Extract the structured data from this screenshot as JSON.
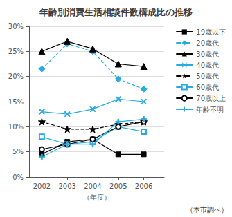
{
  "chart_data": {
    "type": "line",
    "title": "年齢別消費生活相談件数構成比の推移",
    "xlabel": "（年度）",
    "annotations": [
      "（本市調べ）"
    ],
    "x": [
      2002,
      2003,
      2004,
      2005,
      2006
    ],
    "xlim": [
      2001.5,
      2006.8
    ],
    "xticks": [
      2002,
      2003,
      2004,
      2005,
      2006
    ],
    "ylim": [
      0,
      30
    ],
    "yticks": [
      {
        "value": 0,
        "label": "0%"
      },
      {
        "value": 5,
        "label": "5%"
      },
      {
        "value": 10,
        "label": "10%"
      },
      {
        "value": 15,
        "label": "15%"
      },
      {
        "value": 20,
        "label": "20%"
      },
      {
        "value": 25,
        "label": "25%"
      },
      {
        "value": 30,
        "label": "30%"
      }
    ],
    "grid": true,
    "legend": "upper right",
    "series": [
      {
        "name": "19歳以下",
        "values": [
          4.5,
          7.0,
          7.5,
          4.5,
          4.5
        ],
        "color": "#000000",
        "line_style": "solid",
        "marker": "square"
      },
      {
        "name": "20歳代",
        "values": [
          21.5,
          26.5,
          25.0,
          19.5,
          17.5
        ],
        "color": "#29ABE2",
        "line_style": "dashed",
        "marker": "diamond"
      },
      {
        "name": "30歳代",
        "values": [
          25.0,
          27.0,
          25.5,
          22.5,
          22.0
        ],
        "color": "#000000",
        "line_style": "solid",
        "marker": "triangle"
      },
      {
        "name": "40歳代",
        "values": [
          13.0,
          12.5,
          13.5,
          15.5,
          15.0
        ],
        "color": "#29ABE2",
        "line_style": "solid",
        "marker": "x"
      },
      {
        "name": "50歳代",
        "values": [
          11.0,
          9.5,
          9.5,
          10.5,
          11.0
        ],
        "color": "#000000",
        "line_style": "dashed",
        "marker": "star"
      },
      {
        "name": "60歳代",
        "values": [
          8.0,
          6.5,
          7.0,
          10.0,
          9.0
        ],
        "color": "#29ABE2",
        "line_style": "solid",
        "marker": "hollow-square"
      },
      {
        "name": "70歳以上",
        "values": [
          5.5,
          6.5,
          7.5,
          10.0,
          11.0
        ],
        "color": "#000000",
        "line_style": "solid",
        "marker": "hollow-circle"
      },
      {
        "name": "年齢不明",
        "values": [
          4.0,
          6.5,
          6.5,
          11.0,
          11.5
        ],
        "color": "#29ABE2",
        "line_style": "solid",
        "marker": "plus"
      }
    ]
  }
}
